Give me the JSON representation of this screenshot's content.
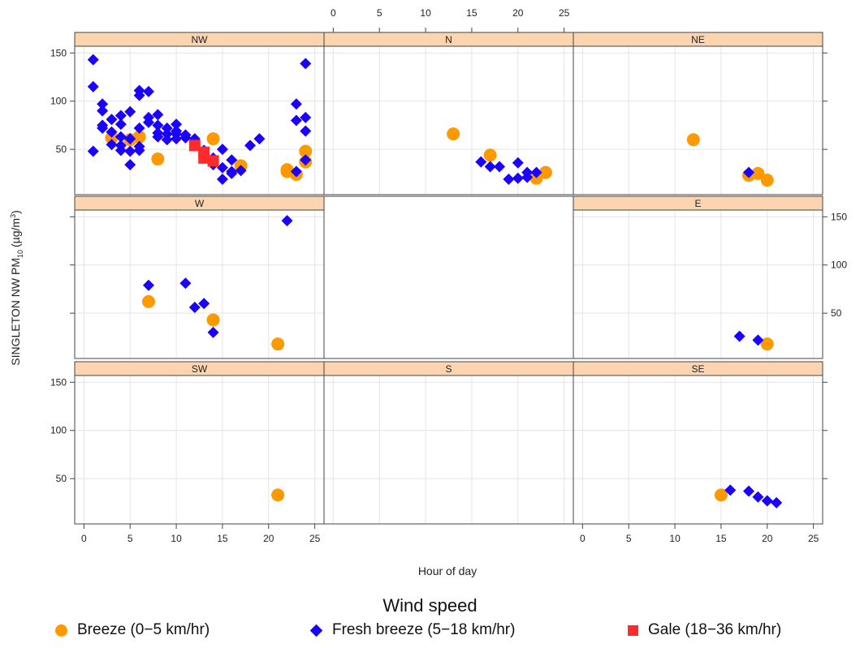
{
  "chart_data": {
    "type": "scatter",
    "title": "",
    "xlabel": "Hour of day",
    "ylabel_main": "SINGLETON NW PM",
    "ylabel_sub": "10",
    "ylabel_units": "(µg/m",
    "ylabel_sup": "3",
    "ylabel_close": ")",
    "xlim": [
      -1,
      26
    ],
    "ylim": [
      3,
      157
    ],
    "xticks": [
      0,
      5,
      10,
      15,
      20,
      25
    ],
    "yticks": [
      50,
      100,
      150
    ],
    "legend": {
      "title": "Wind speed",
      "position": "bottom",
      "entries": [
        {
          "label": "Breeze (0−5 km/hr)",
          "symbol": "circle",
          "color": "#ff9900"
        },
        {
          "label": "Fresh breeze (5−18 km/hr)",
          "symbol": "diamond",
          "color": "#1a00ff"
        },
        {
          "label": "Gale (18−36 km/hr)",
          "symbol": "square",
          "color": "#ff2a2a"
        }
      ]
    },
    "series_styles": {
      "breeze": {
        "symbol": "circle",
        "color": "#ff9900"
      },
      "fresh": {
        "symbol": "diamond",
        "color": "#1a00ff"
      },
      "gale": {
        "symbol": "square",
        "color": "#ff2a2a"
      }
    },
    "panels": [
      {
        "label": "NW",
        "row": 0,
        "col": 0,
        "breeze": [
          [
            3,
            62
          ],
          [
            6,
            63
          ],
          [
            8,
            40
          ],
          [
            14,
            61
          ],
          [
            17,
            33
          ],
          [
            22,
            29
          ],
          [
            22,
            27
          ],
          [
            23,
            24
          ],
          [
            24,
            48
          ],
          [
            24,
            37
          ],
          [
            5,
            60
          ]
        ],
        "fresh": [
          [
            1,
            143
          ],
          [
            1,
            115
          ],
          [
            1,
            48
          ],
          [
            2,
            97
          ],
          [
            2,
            90
          ],
          [
            2,
            75
          ],
          [
            2,
            72
          ],
          [
            3,
            81
          ],
          [
            3,
            68
          ],
          [
            3,
            55
          ],
          [
            4,
            85
          ],
          [
            4,
            76
          ],
          [
            4,
            63
          ],
          [
            4,
            54
          ],
          [
            4,
            49
          ],
          [
            5,
            89
          ],
          [
            5,
            61
          ],
          [
            5,
            48
          ],
          [
            5,
            34
          ],
          [
            6,
            111
          ],
          [
            6,
            106
          ],
          [
            6,
            72
          ],
          [
            6,
            53
          ],
          [
            6,
            49
          ],
          [
            7,
            110
          ],
          [
            7,
            83
          ],
          [
            7,
            78
          ],
          [
            8,
            86
          ],
          [
            8,
            75
          ],
          [
            8,
            67
          ],
          [
            8,
            63
          ],
          [
            9,
            72
          ],
          [
            9,
            66
          ],
          [
            9,
            60
          ],
          [
            10,
            76
          ],
          [
            10,
            69
          ],
          [
            10,
            66
          ],
          [
            10,
            61
          ],
          [
            11,
            65
          ],
          [
            11,
            62
          ],
          [
            12,
            61
          ],
          [
            12,
            57
          ],
          [
            13,
            49
          ],
          [
            13,
            44
          ],
          [
            14,
            41
          ],
          [
            14,
            34
          ],
          [
            15,
            50
          ],
          [
            15,
            31
          ],
          [
            15,
            19
          ],
          [
            16,
            39
          ],
          [
            16,
            27
          ],
          [
            16,
            25
          ],
          [
            17,
            28
          ],
          [
            18,
            54
          ],
          [
            19,
            61
          ],
          [
            23,
            97
          ],
          [
            23,
            80
          ],
          [
            23,
            27
          ],
          [
            24,
            139
          ],
          [
            24,
            83
          ],
          [
            24,
            69
          ],
          [
            24,
            39
          ]
        ],
        "gale": [
          [
            12,
            54
          ],
          [
            13,
            47
          ],
          [
            13,
            41
          ],
          [
            14,
            38
          ]
        ]
      },
      {
        "label": "N",
        "row": 0,
        "col": 1,
        "breeze": [
          [
            13,
            66
          ],
          [
            17,
            44
          ],
          [
            22,
            20
          ],
          [
            23,
            26
          ]
        ],
        "fresh": [
          [
            16,
            37
          ],
          [
            17,
            32
          ],
          [
            18,
            32
          ],
          [
            19,
            19
          ],
          [
            20,
            36
          ],
          [
            20,
            20
          ],
          [
            21,
            26
          ],
          [
            21,
            21
          ],
          [
            22,
            26
          ]
        ],
        "gale": []
      },
      {
        "label": "NE",
        "row": 0,
        "col": 2,
        "breeze": [
          [
            12,
            60
          ],
          [
            18,
            23
          ],
          [
            19,
            25
          ],
          [
            20,
            18
          ]
        ],
        "fresh": [
          [
            18,
            26
          ]
        ],
        "gale": []
      },
      {
        "label": "W",
        "row": 1,
        "col": 0,
        "breeze": [
          [
            7,
            62
          ],
          [
            14,
            43
          ],
          [
            21,
            18
          ]
        ],
        "fresh": [
          [
            7,
            79
          ],
          [
            11,
            81
          ],
          [
            12,
            56
          ],
          [
            13,
            60
          ],
          [
            14,
            30
          ],
          [
            22,
            146
          ]
        ],
        "gale": []
      },
      {
        "label": "E",
        "row": 1,
        "col": 2,
        "breeze": [
          [
            20,
            18
          ]
        ],
        "fresh": [
          [
            17,
            26
          ],
          [
            19,
            22
          ]
        ],
        "gale": []
      },
      {
        "label": "SW",
        "row": 2,
        "col": 0,
        "breeze": [
          [
            21,
            33
          ]
        ],
        "fresh": [],
        "gale": []
      },
      {
        "label": "S",
        "row": 2,
        "col": 1,
        "breeze": [],
        "fresh": [],
        "gale": []
      },
      {
        "label": "SE",
        "row": 2,
        "col": 2,
        "breeze": [
          [
            15,
            33
          ]
        ],
        "fresh": [
          [
            16,
            38
          ],
          [
            18,
            37
          ],
          [
            19,
            31
          ],
          [
            20,
            27
          ],
          [
            21,
            25
          ]
        ],
        "gale": []
      }
    ]
  }
}
